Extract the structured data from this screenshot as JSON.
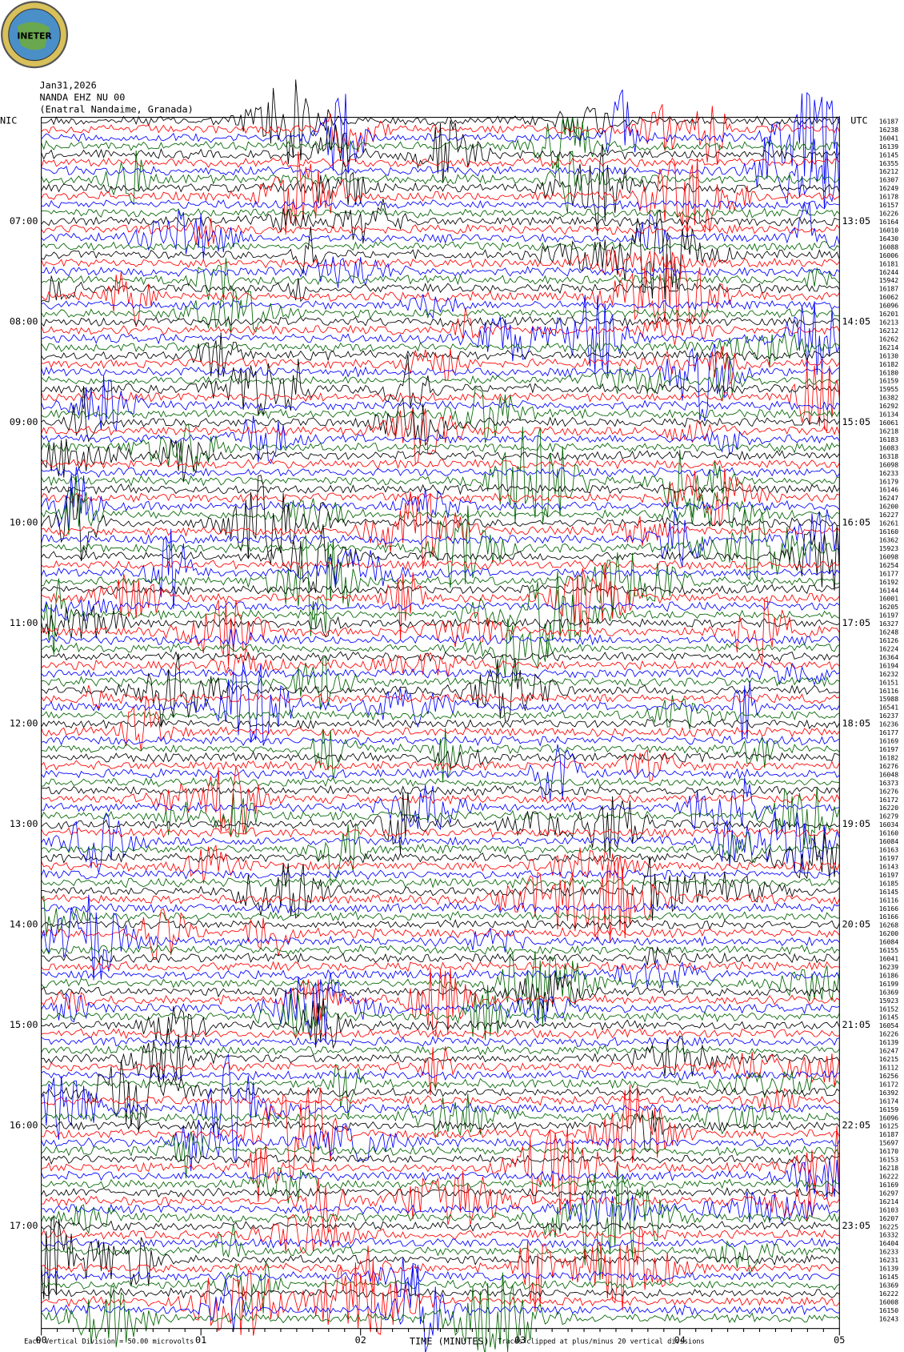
{
  "logo": "INETER",
  "header": {
    "date": "Jan31,2026",
    "station": "NANDA EHZ NU 00",
    "location": "(Enatral Nandaime, Granada)"
  },
  "left_labels": [
    "NIC",
    "07:00",
    "08:00",
    "09:00",
    "10:00",
    "11:00",
    "12:00",
    "13:00",
    "14:00",
    "15:00",
    "16:00",
    "17:00"
  ],
  "right_labels": [
    "UTC",
    "13:05",
    "14:05",
    "15:05",
    "16:05",
    "17:05",
    "18:05",
    "19:05",
    "20:05",
    "21:05",
    "22:05",
    "23:05"
  ],
  "trace_values": [
    16187,
    16238,
    16041,
    16139,
    16145,
    16355,
    16212,
    16307,
    16249,
    16178,
    16157,
    16226,
    16164,
    16010,
    16430,
    16088,
    16006,
    16181,
    16244,
    15942,
    16187,
    16062,
    16096,
    16201,
    16213,
    16212,
    16262,
    16214,
    16130,
    16182,
    16180,
    16159,
    15955,
    16382,
    16292,
    16134,
    16061,
    16218,
    16183,
    16083,
    16318,
    16098,
    16233,
    16179,
    16146,
    16247,
    16200,
    16227,
    16261,
    16160,
    16362,
    15923,
    16098,
    16254,
    16177,
    16192,
    16144,
    16001,
    16205,
    16197,
    16327,
    16248,
    16126,
    16224,
    16364,
    16194,
    16232,
    16151,
    16116,
    15988,
    16541,
    16237,
    16236,
    16177,
    16169,
    16197,
    16182,
    16276,
    16048,
    16373,
    16276,
    16172,
    16220,
    16279,
    16034,
    16160,
    16084,
    16163,
    16197,
    16143,
    16197,
    16185,
    16145,
    16116,
    16166,
    16166,
    16268,
    16200,
    16084,
    16155,
    16041,
    16239,
    16186,
    16199,
    16369,
    15923,
    16152,
    16145,
    16054,
    16226,
    16139,
    16247,
    16215,
    16112,
    16256,
    16172,
    16392,
    16174,
    16159,
    16096,
    16125,
    16187,
    15697,
    16170,
    16153,
    16218,
    16222,
    16169,
    16297,
    16214,
    16103,
    16207,
    16225,
    16332,
    16404,
    16233,
    16231,
    16139,
    16145,
    16369,
    16222,
    16008,
    16150,
    16243
  ],
  "x_axis": {
    "label": "TIME (MINUTES)",
    "ticks": [
      "00",
      "01",
      "02",
      "03",
      "04",
      "05"
    ]
  },
  "footer": {
    "scale": "Each Vertical Division = 50.00 microvolts",
    "clip": "Traces clipped at plus/minus 20 vertical divisions"
  }
}
